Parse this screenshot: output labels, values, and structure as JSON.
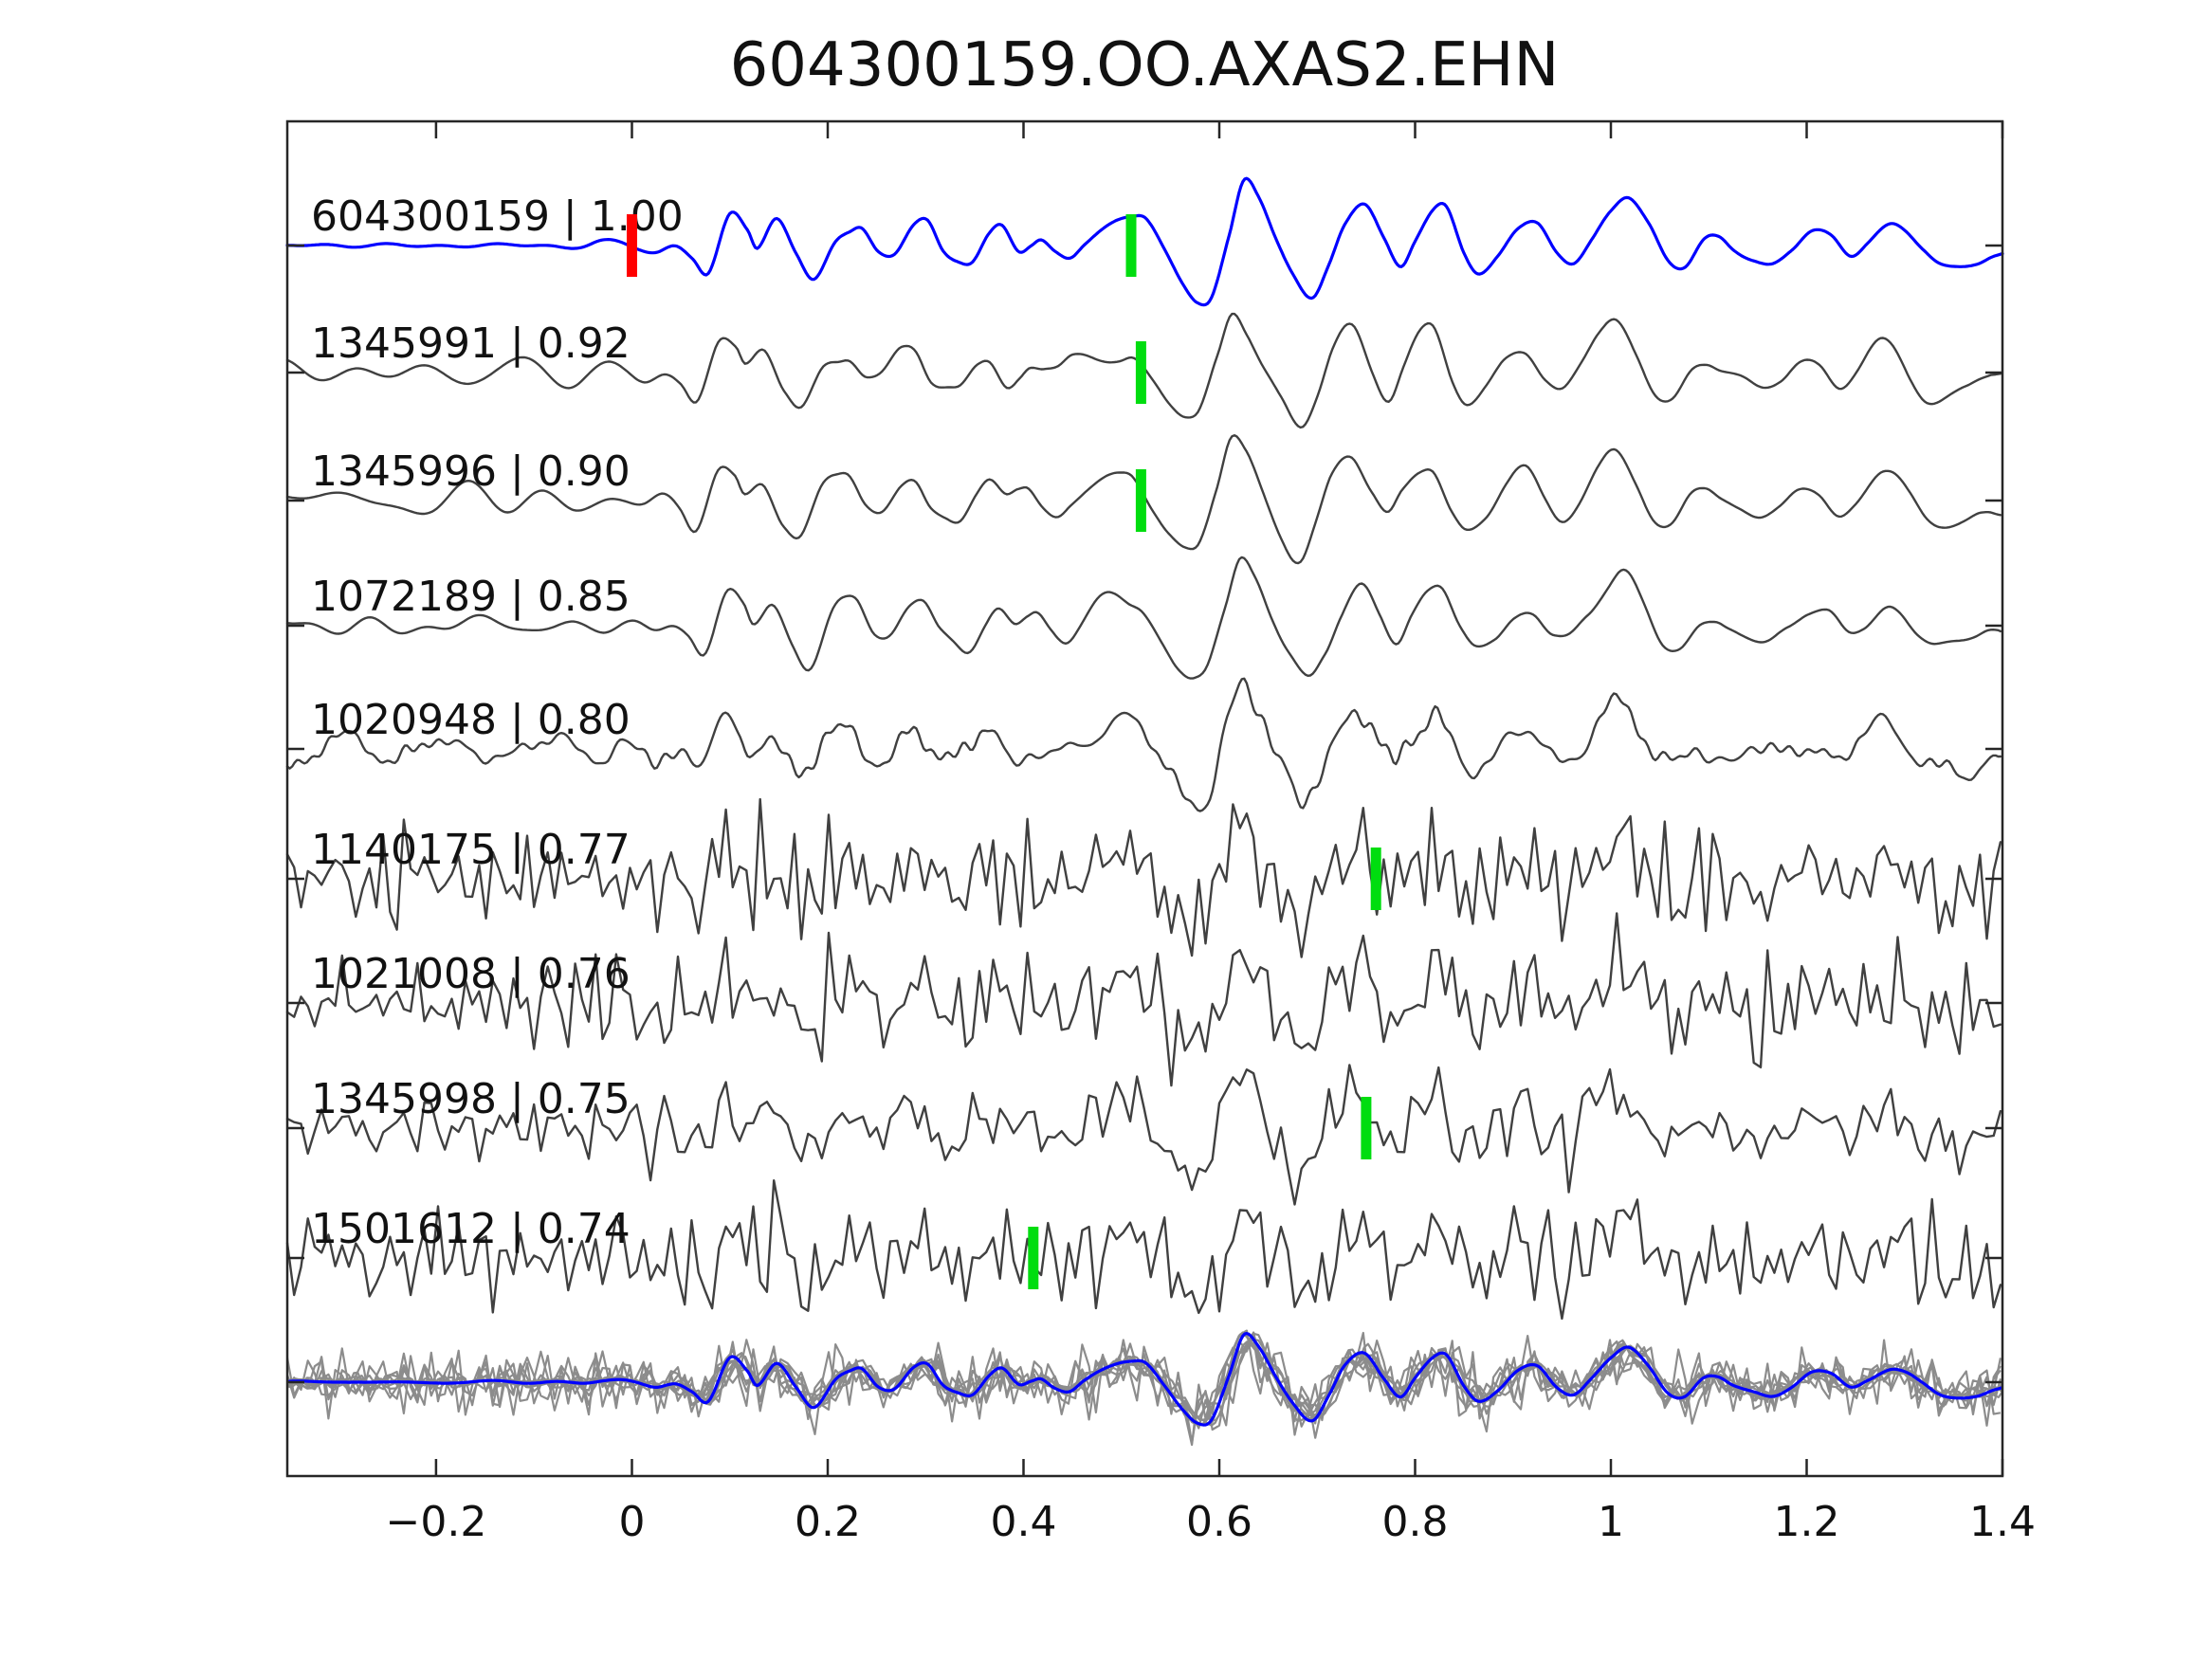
{
  "chart_data": {
    "type": "line",
    "title": "604300159.OO.AXAS2.EHN",
    "xlabel": "",
    "ylabel": "",
    "xlim": [
      -0.352,
      1.4
    ],
    "grid": false,
    "legend": "none",
    "x_ticks": [
      -0.2,
      0,
      0.2,
      0.4,
      0.6,
      0.8,
      1,
      1.2,
      1.4
    ],
    "x_tick_labels": [
      "−0.2",
      "0",
      "0.2",
      "0.4",
      "0.6",
      "0.8",
      "1",
      "1.2",
      "1.4"
    ],
    "colors": {
      "template_blue": "#0000ff",
      "event_gray": "#404040",
      "overlay_gray": "#8c8c8c",
      "marker_red": "#ff0000",
      "marker_green": "#00dd0f",
      "axis": "#262626",
      "text": "#111111",
      "background": "#ffffff"
    },
    "marker_size": {
      "width": 11,
      "height": 66
    },
    "template_waveform": {
      "note": "digitized template trace, amplitude in px (positive=up), max ~70px",
      "points": [
        [
          -0.352,
          0
        ],
        [
          -0.32,
          1
        ],
        [
          -0.29,
          -1
        ],
        [
          -0.26,
          1
        ],
        [
          -0.23,
          -1
        ],
        [
          -0.2,
          1
        ],
        [
          -0.17,
          -1
        ],
        [
          -0.14,
          1
        ],
        [
          -0.11,
          -1
        ],
        [
          -0.08,
          1
        ],
        [
          -0.05,
          -1
        ],
        [
          -0.03,
          2
        ],
        [
          -0.01,
          3
        ],
        [
          0.005,
          0
        ],
        [
          0.025,
          -7
        ],
        [
          0.045,
          -3
        ],
        [
          0.062,
          -14
        ],
        [
          0.078,
          -28
        ],
        [
          0.1,
          34
        ],
        [
          0.118,
          16
        ],
        [
          0.128,
          -4
        ],
        [
          0.148,
          28
        ],
        [
          0.168,
          -8
        ],
        [
          0.186,
          -36
        ],
        [
          0.208,
          4
        ],
        [
          0.222,
          16
        ],
        [
          0.235,
          20
        ],
        [
          0.252,
          -8
        ],
        [
          0.268,
          -12
        ],
        [
          0.288,
          22
        ],
        [
          0.302,
          28
        ],
        [
          0.318,
          -4
        ],
        [
          0.334,
          -16
        ],
        [
          0.348,
          -18
        ],
        [
          0.365,
          10
        ],
        [
          0.378,
          20
        ],
        [
          0.395,
          -4
        ],
        [
          0.408,
          2
        ],
        [
          0.418,
          6
        ],
        [
          0.432,
          -8
        ],
        [
          0.447,
          -14
        ],
        [
          0.462,
          2
        ],
        [
          0.478,
          16
        ],
        [
          0.495,
          26
        ],
        [
          0.51,
          30
        ],
        [
          0.525,
          28
        ],
        [
          0.545,
          -6
        ],
        [
          0.562,
          -38
        ],
        [
          0.578,
          -60
        ],
        [
          0.592,
          -56
        ],
        [
          0.61,
          10
        ],
        [
          0.625,
          70
        ],
        [
          0.64,
          52
        ],
        [
          0.658,
          6
        ],
        [
          0.675,
          -30
        ],
        [
          0.695,
          -56
        ],
        [
          0.712,
          -20
        ],
        [
          0.728,
          24
        ],
        [
          0.748,
          44
        ],
        [
          0.768,
          6
        ],
        [
          0.785,
          -22
        ],
        [
          0.8,
          6
        ],
        [
          0.818,
          36
        ],
        [
          0.832,
          40
        ],
        [
          0.85,
          -6
        ],
        [
          0.865,
          -28
        ],
        [
          0.885,
          -12
        ],
        [
          0.905,
          16
        ],
        [
          0.925,
          24
        ],
        [
          0.945,
          -6
        ],
        [
          0.962,
          -18
        ],
        [
          0.98,
          4
        ],
        [
          1.0,
          36
        ],
        [
          1.018,
          52
        ],
        [
          1.038,
          24
        ],
        [
          1.058,
          -16
        ],
        [
          1.075,
          -22
        ],
        [
          1.095,
          6
        ],
        [
          1.11,
          8
        ],
        [
          1.125,
          -4
        ],
        [
          1.145,
          -14
        ],
        [
          1.165,
          -20
        ],
        [
          1.185,
          -6
        ],
        [
          1.205,
          14
        ],
        [
          1.225,
          12
        ],
        [
          1.245,
          -8
        ],
        [
          1.262,
          2
        ],
        [
          1.285,
          20
        ],
        [
          1.3,
          16
        ],
        [
          1.318,
          -2
        ],
        [
          1.335,
          -18
        ],
        [
          1.355,
          -22
        ],
        [
          1.375,
          -20
        ],
        [
          1.39,
          -12
        ],
        [
          1.4,
          -8
        ]
      ]
    },
    "traces": [
      {
        "label": "604300159 | 1.00",
        "event_id": "604300159",
        "cc": 1.0,
        "style": "template",
        "baseline": 259,
        "seed": 11,
        "signal_scale": 1.0,
        "wander_amp": 2.5,
        "hf_amp": 0,
        "dt": 0.002,
        "shift": 0,
        "markers": [
          {
            "t": 0.0,
            "kind": "origin",
            "color": "red"
          },
          {
            "t": 0.51,
            "kind": "pick",
            "color": "green"
          }
        ]
      },
      {
        "label": "1345991 | 0.92",
        "event_id": "1345991",
        "cc": 0.92,
        "style": "event",
        "baseline": 393,
        "seed": 12,
        "signal_scale": 0.93,
        "wander_amp": 15,
        "hf_amp": 0,
        "dt": 0.0025,
        "shift": 0.012,
        "markers": [
          {
            "t": 0.52,
            "kind": "pick",
            "color": "green"
          }
        ]
      },
      {
        "label": "1345996 | 0.90",
        "event_id": "1345996",
        "cc": 0.9,
        "style": "event",
        "baseline": 528,
        "seed": 13,
        "signal_scale": 0.93,
        "wander_amp": 16,
        "hf_amp": 0,
        "dt": 0.0025,
        "shift": 0.013,
        "markers": [
          {
            "t": 0.52,
            "kind": "pick",
            "color": "green"
          }
        ]
      },
      {
        "label": "1072189 | 0.85",
        "event_id": "1072189",
        "cc": 0.85,
        "style": "event",
        "baseline": 660,
        "seed": 14,
        "signal_scale": 0.96,
        "wander_amp": 13,
        "hf_amp": 0,
        "dt": 0.0025,
        "shift": 0.004,
        "markers": []
      },
      {
        "label": "1020948 | 0.80",
        "event_id": "1020948",
        "cc": 0.8,
        "style": "event",
        "baseline": 790,
        "seed": 15,
        "signal_scale": 0.96,
        "wander_amp": 17,
        "hf_amp": 6,
        "dt": 0.0025,
        "shift": 0.008,
        "markers": []
      },
      {
        "label": "1140175 | 0.77",
        "event_id": "1140175",
        "cc": 0.77,
        "style": "event",
        "baseline": 927,
        "seed": 16,
        "signal_scale": 0.8,
        "wander_amp": 12,
        "hf_amp": 52,
        "dt": 0.007,
        "shift": 0.008,
        "markers": [
          {
            "t": 0.76,
            "kind": "pick",
            "color": "green"
          }
        ]
      },
      {
        "label": "1021008 | 0.76",
        "event_id": "1021008",
        "cc": 0.76,
        "style": "event",
        "baseline": 1058,
        "seed": 17,
        "signal_scale": 0.82,
        "wander_amp": 12,
        "hf_amp": 48,
        "dt": 0.007,
        "shift": 0.004,
        "markers": []
      },
      {
        "label": "1345998 | 0.75",
        "event_id": "1345998",
        "cc": 0.75,
        "style": "event",
        "baseline": 1190,
        "seed": 18,
        "signal_scale": 0.8,
        "wander_amp": 12,
        "hf_amp": 32,
        "dt": 0.007,
        "shift": 0.01,
        "markers": [
          {
            "t": 0.75,
            "kind": "pick",
            "color": "green"
          }
        ]
      },
      {
        "label": "1501612 | 0.74",
        "event_id": "1501612",
        "cc": 0.74,
        "style": "event",
        "baseline": 1327,
        "seed": 19,
        "signal_scale": 0.8,
        "wander_amp": 12,
        "hf_amp": 46,
        "dt": 0.007,
        "shift": 0,
        "markers": [
          {
            "t": 0.41,
            "kind": "pick",
            "color": "green"
          }
        ]
      }
    ],
    "overlay": {
      "baseline": 1458,
      "blue": {
        "seed": 30,
        "signal_scale": 0.72,
        "hf_amp": 0,
        "dt": 0.002,
        "shift": 0
      },
      "events": [
        {
          "seed": 21,
          "signal_scale": 0.7,
          "hf_amp": 4,
          "dt": 0.004,
          "shift": 0.003
        },
        {
          "seed": 22,
          "signal_scale": 0.66,
          "hf_amp": 6,
          "dt": 0.004,
          "shift": -0.004
        },
        {
          "seed": 23,
          "signal_scale": 0.68,
          "hf_amp": 6,
          "dt": 0.004,
          "shift": 0.006
        },
        {
          "seed": 24,
          "signal_scale": 0.68,
          "hf_amp": 7,
          "dt": 0.004,
          "shift": -0.006
        },
        {
          "seed": 25,
          "signal_scale": 0.56,
          "hf_amp": 34,
          "dt": 0.007,
          "shift": 0.004
        },
        {
          "seed": 26,
          "signal_scale": 0.58,
          "hf_amp": 30,
          "dt": 0.007,
          "shift": -0.005
        },
        {
          "seed": 27,
          "signal_scale": 0.56,
          "hf_amp": 22,
          "dt": 0.007,
          "shift": 0.008
        },
        {
          "seed": 28,
          "signal_scale": 0.56,
          "hf_amp": 29,
          "dt": 0.007,
          "shift": -0.008
        },
        {
          "seed": 29,
          "signal_scale": 0.6,
          "hf_amp": 26,
          "dt": 0.007,
          "shift": 0.002
        }
      ]
    }
  }
}
